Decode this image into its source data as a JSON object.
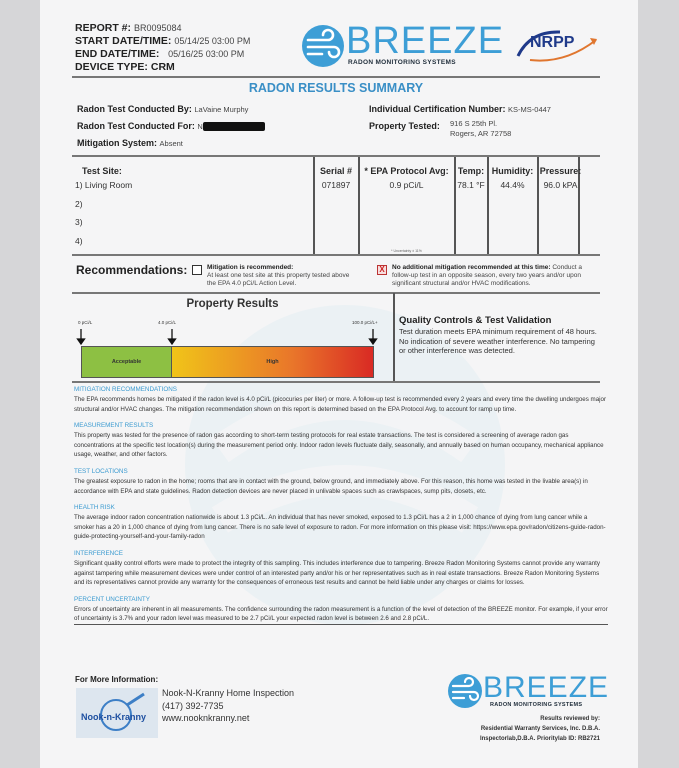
{
  "header": {
    "report_label": "REPORT #:",
    "report_value": "BR0095084",
    "start_label": "START DATE/TIME:",
    "start_value": "05/14/25 03:00 PM",
    "end_label": "END DATE/TIME:",
    "end_value": "05/16/25 03:00 PM",
    "device_label": "DEVICE TYPE:",
    "device_value": "CRM"
  },
  "logo": {
    "word": "BREEZE",
    "sub": "RADON MONITORING SYSTEMS",
    "partner": "NRPP",
    "brand_color": "#3d9ed6"
  },
  "title": "RADON RESULTS SUMMARY",
  "info": {
    "conducted_by_label": "Radon Test Conducted By:",
    "conducted_by": "LaVaine Murphy",
    "conducted_for_label": "Radon Test Conducted For:",
    "conducted_for": "N",
    "mitigation_label": "Mitigation System:",
    "mitigation": "Absent",
    "cert_label": "Individual Certification Number:",
    "cert": "KS-MS-0447",
    "property_label": "Property Tested:",
    "property_line1": "916 S 25th Pl.",
    "property_line2": "Rogers, AR 72758"
  },
  "table": {
    "headers": [
      "Test Site:",
      "Serial #",
      "* EPA Protocol Avg:",
      "Temp:",
      "Humidity:",
      "Pressure:"
    ],
    "sites": [
      "1) Living Room",
      "2)",
      "3)",
      "4)"
    ],
    "serial": "071897",
    "epa_avg": "0.9 pCi/L",
    "temp": "78.1 °F",
    "humidity": "44.4%",
    "pressure": "96.0 kPA",
    "uncertainty_note": "* Uncertainty ± 11%"
  },
  "recommendations": {
    "label": "Recommendations:",
    "opt1_title": "Mitigation is recommended:",
    "opt1_text": "At least one test site at this property tested above the EPA 4.0 pCi/L Action Level.",
    "opt1_checked": false,
    "opt2_title": "No additional mitigation recommended at this time:",
    "opt2_text": "Conduct a follow-up test in an opposite season, every two years and/or upon significant structural and/or HVAC modifications.",
    "opt2_checked": true,
    "check_mark": "X"
  },
  "property_results": {
    "title": "Property Results",
    "tick_labels": [
      "0 pCi/L",
      "4.0 pCi/L",
      "100.0 pCi/L+"
    ],
    "zone_acceptable": "Acceptable",
    "zone_high": "High",
    "colors": {
      "acceptable": "#8dc043",
      "high_start": "#f0c419",
      "high_end": "#d92a24"
    }
  },
  "quality": {
    "title": "Quality Controls & Test Validation",
    "text": "Test duration meets EPA minimum requirement of 48 hours. No indication of severe weather interference. No tampering or other interference was detected."
  },
  "sections": [
    {
      "heading": "Mitigation Recommendations",
      "text": "The EPA recommends homes be mitigated if the radon level is 4.0 pCi/L (picocuries per liter) or more. A follow-up test is recommended every 2 years and every time the dwelling undergoes major structural and/or HVAC changes. The mitigation recommendation shown on this report is determined based on the EPA Protocol Avg. to account for ramp up time."
    },
    {
      "heading": "Measurement Results",
      "text": "This property was tested for the presence of radon gas according to short-term testing protocols for real estate transactions. The test is considered a screening of average radon gas concentrations at the specific test location(s) during the measurement period only. Indoor radon levels fluctuate daily, seasonally, and annually based on human occupancy, mechanical appliance usage, weather, and other factors."
    },
    {
      "heading": "Test Locations",
      "text": "The greatest exposure to radon in the home; rooms that are in contact with the ground, below ground, and immediately above. For this reason, this home was tested in the livable area(s) in accordance with EPA and state guidelines. Radon detection devices are never placed in unlivable spaces such as crawlspaces, sump pits, closets, etc."
    },
    {
      "heading": "Health Risk",
      "text": "The average indoor radon concentration nationwide is about 1.3 pCi/L. An individual that has never smoked, exposed to 1.3 pCi/L has a 2 in 1,000 chance of dying from lung cancer while a smoker has a 20 in 1,000 chance of dying from lung cancer. There is no safe level of exposure to radon. For more information on this please visit: https://www.epa.gov/radon/citizens-guide-radon-guide-protecting-yourself-and-your-family-radon"
    },
    {
      "heading": "Interference",
      "text": "Significant quality control efforts were made to protect the integrity of this sampling. This includes interference due to tampering. Breeze Radon Monitoring Systems cannot provide any warranty against tampering while measurement devices were under control of an interested party and/or his or her representatives such as in real estate transactions. Breeze Radon Monitoring Systems and its representatives cannot provide any warranty for the consequences of erroneous test results and cannot be held liable under any charges or claims for losses."
    },
    {
      "heading": "Percent Uncertainty",
      "text": "Errors of uncertainty are inherent in all measurements. The confidence surrounding the radon measurement is a function of the level of detection of the BREEZE monitor. For example, if your error of uncertainty is 3.7% and your radon level was measured to be 2.7 pCi/L your expected radon level is between 2.6 and 2.8 pCi/L."
    }
  ],
  "footer": {
    "more_info": "For More Information:",
    "company": "Nook-N-Kranny Home Inspection",
    "phone": "(417) 392-7735",
    "website": "www.nooknkranny.net",
    "company_logo_text": "Nook-n-Kranny",
    "reviewed_by": "Results reviewed by:",
    "reviewer_line1": "Residential Warranty Services, Inc. D.B.A.",
    "reviewer_line2": "Inspectorlab,D.B.A. Prioritylab ID: RB2721"
  }
}
